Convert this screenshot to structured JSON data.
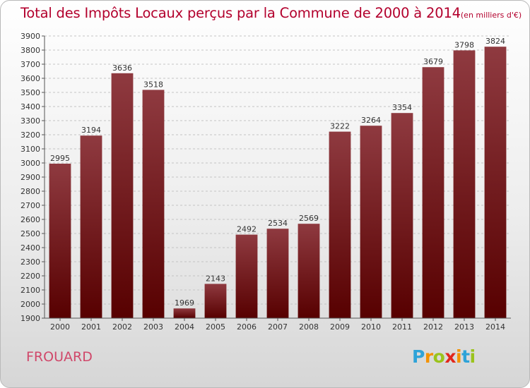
{
  "header": {
    "title": "Total des Impôts Locaux perçus par la Commune de 2000 à 2014",
    "unit": "(en milliers d'€)"
  },
  "commune": "FROUARD",
  "logo": {
    "letters": [
      "P",
      "r",
      "o",
      "x",
      "i",
      "t",
      "i"
    ],
    "colors": [
      "#2ea3d8",
      "#f39200",
      "#9bc31c",
      "#e2261b",
      "#f39200",
      "#2ea3d8",
      "#9bc31c"
    ]
  },
  "colors": {
    "bar_top": "#8f3a40",
    "bar_bottom": "#570000",
    "title": "#b3002d",
    "commune": "#d0486a"
  },
  "chart_data": {
    "type": "bar",
    "categories": [
      "2000",
      "2001",
      "2002",
      "2003",
      "2004",
      "2005",
      "2006",
      "2007",
      "2008",
      "2009",
      "2010",
      "2011",
      "2012",
      "2013",
      "2014"
    ],
    "values": [
      2995,
      3194,
      3636,
      3518,
      1969,
      2143,
      2492,
      2534,
      2569,
      3222,
      3264,
      3354,
      3679,
      3798,
      3824
    ],
    "yticks": [
      1900,
      2000,
      2100,
      2200,
      2300,
      2400,
      2500,
      2600,
      2700,
      2800,
      2900,
      3000,
      3100,
      3200,
      3300,
      3400,
      3500,
      3600,
      3700,
      3800,
      3900
    ],
    "ylim": [
      1900,
      3900
    ],
    "grid": true,
    "title": "Total des Impôts Locaux perçus par la Commune de 2000 à 2014",
    "ylabel": "(en milliers d'€)"
  }
}
